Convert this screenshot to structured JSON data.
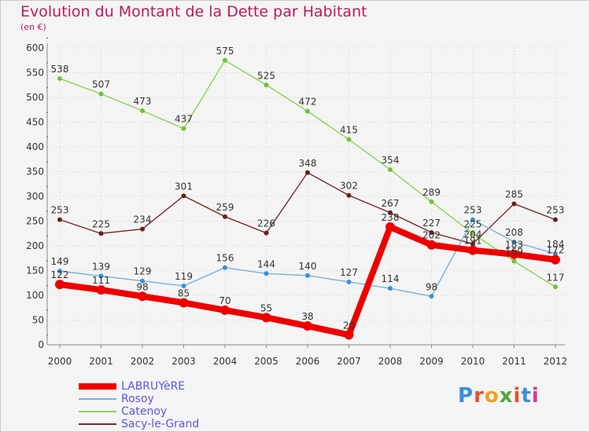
{
  "header": {
    "title": "Evolution du Montant de la Dette par Habitant",
    "subtitle": "(en €)"
  },
  "logo": {
    "text": "Proxiti",
    "colors": [
      "#3a8fd8",
      "#e8522a",
      "#f0a020",
      "#4aaa3a",
      "#e8522a",
      "#3a8fd8",
      "#d83a8a"
    ]
  },
  "colors": {
    "title": "#c0185a",
    "axis_text": "#333333",
    "grid": "#d0d0d0"
  },
  "chart_data": {
    "type": "line",
    "title": "Evolution du Montant de la Dette par Habitant",
    "subtitle": "(en €)",
    "x": [
      "2000",
      "2001",
      "2002",
      "2003",
      "2004",
      "2005",
      "2006",
      "2007",
      "2008",
      "2009",
      "2010",
      "2011",
      "2012"
    ],
    "y_ticks": [
      "0",
      "50",
      "100",
      "150",
      "200",
      "250",
      "300",
      "350",
      "400",
      "450",
      "500",
      "550",
      "600"
    ],
    "ylim": [
      0,
      600
    ],
    "grid": true,
    "legend_position": "bottom-left",
    "series": [
      {
        "name": "Catenoy",
        "color": "#8dd353",
        "marker": "#6fc23a",
        "values": [
          538,
          507,
          473,
          437,
          575,
          525,
          472,
          415,
          354,
          289,
          225,
          169,
          117
        ],
        "labels": [
          "538",
          "507",
          "473",
          "437",
          "575",
          "525",
          "472",
          "415",
          "354",
          "289",
          "225",
          "169",
          "117"
        ]
      },
      {
        "name": "Sacy-le-Grand",
        "color": "#7a2a2a",
        "marker": "#6a1e1e",
        "values": [
          253,
          225,
          234,
          301,
          259,
          226,
          348,
          302,
          267,
          227,
          204,
          285,
          253
        ],
        "labels": [
          "253",
          "225",
          "234",
          "301",
          "259",
          "226",
          "348",
          "302",
          "267",
          "227",
          "204",
          "285",
          "253"
        ]
      },
      {
        "name": "Rosoy",
        "color": "#7ab0d8",
        "marker": "#3a8fd8",
        "values": [
          149,
          139,
          129,
          119,
          156,
          144,
          140,
          127,
          114,
          98,
          253,
          208,
          184
        ],
        "labels": [
          "149",
          "139",
          "129",
          "119",
          "156",
          "144",
          "140",
          "127",
          "114",
          "98",
          "253",
          "208",
          "184"
        ]
      },
      {
        "name": "LABRUYèRE",
        "color": "#ee0000",
        "marker": "#ee0000",
        "values": [
          122,
          111,
          98,
          85,
          70,
          55,
          38,
          20,
          238,
          202,
          191,
          183,
          172
        ],
        "labels": [
          "122",
          "111",
          "98",
          "85",
          "70",
          "55",
          "38",
          "20",
          "238",
          "202",
          "191",
          "183",
          "172"
        ]
      }
    ],
    "legend": [
      {
        "name": "LABRUYèRE",
        "color": "#ee0000",
        "text_color": "#5858e8",
        "thickness": 8
      },
      {
        "name": "Rosoy",
        "color": "#7ab0d8",
        "text_color": "#5858e8",
        "thickness": 2
      },
      {
        "name": "Catenoy",
        "color": "#8dd353",
        "text_color": "#5858e8",
        "thickness": 2
      },
      {
        "name": "Sacy-le-Grand",
        "color": "#7a2a2a",
        "text_color": "#5858e8",
        "thickness": 2
      }
    ]
  }
}
